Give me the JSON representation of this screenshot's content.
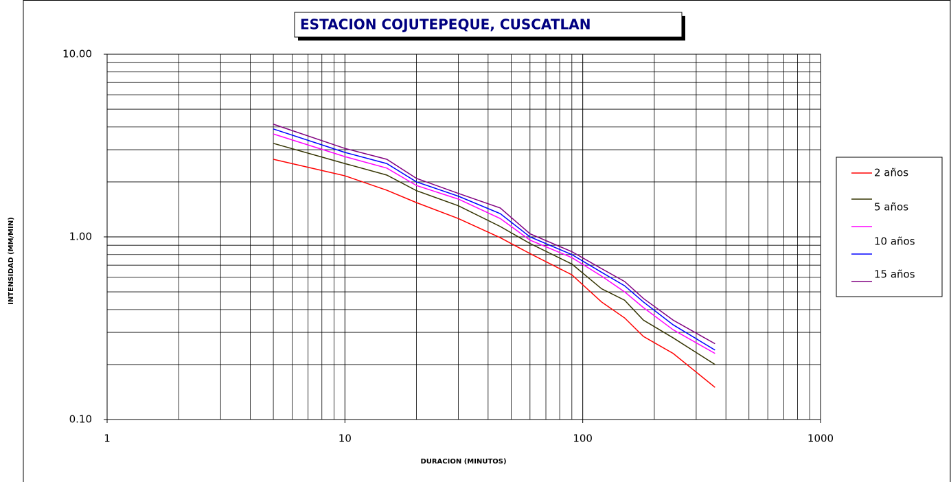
{
  "chart_data": {
    "type": "line",
    "title": "ESTACION COJUTEPEQUE, CUSCATLAN",
    "x_label": "DURACION (MINUTOS)",
    "y_label": "INTENSIDAD (MM/MIN)",
    "x": [
      5,
      10,
      15,
      20,
      30,
      45,
      60,
      90,
      120,
      150,
      180,
      240,
      360
    ],
    "series": [
      {
        "name": "2 años",
        "color": "#ff0000",
        "values": [
          2.66,
          2.16,
          1.8,
          1.54,
          1.26,
          0.99,
          0.81,
          0.62,
          0.44,
          0.36,
          0.285,
          0.23,
          0.15
        ]
      },
      {
        "name": "5 años",
        "color": "#333300",
        "values": [
          3.25,
          2.52,
          2.18,
          1.79,
          1.48,
          1.14,
          0.92,
          0.71,
          0.52,
          0.45,
          0.35,
          0.28,
          0.2
        ]
      },
      {
        "name": null,
        "color": "#ff00ff",
        "values": [
          3.66,
          2.75,
          2.38,
          1.91,
          1.61,
          1.26,
          0.96,
          0.77,
          0.61,
          0.5,
          0.41,
          0.31,
          0.23
        ]
      },
      {
        "name": "10 años",
        "color": "#0000ff",
        "values": [
          3.9,
          2.9,
          2.52,
          2.0,
          1.67,
          1.34,
          1.0,
          0.8,
          0.64,
          0.54,
          0.44,
          0.33,
          0.24
        ]
      },
      {
        "name": "15 años",
        "color": "#800080",
        "values": [
          4.14,
          3.05,
          2.66,
          2.09,
          1.73,
          1.44,
          1.04,
          0.83,
          0.67,
          0.57,
          0.46,
          0.35,
          0.26
        ]
      }
    ],
    "log_x": true,
    "log_y": true,
    "grid": true,
    "xlim": [
      1,
      1000
    ],
    "xticks": [
      1,
      10,
      100,
      1000
    ],
    "xminor": [
      2,
      3,
      4,
      5,
      6,
      7,
      8,
      9,
      20,
      30,
      40,
      50,
      60,
      70,
      80,
      90,
      200,
      300,
      400,
      500,
      600,
      700,
      800,
      900
    ],
    "ylim": [
      0.1,
      10
    ],
    "yticks": [
      {
        "value": 0.1,
        "label": "0.10"
      },
      {
        "value": 1,
        "label": "1.00"
      },
      {
        "value": 10,
        "label": "10.00"
      }
    ],
    "yminor": [
      0.2,
      0.3,
      0.4,
      0.5,
      0.6,
      0.7,
      0.8,
      0.9,
      2,
      3,
      4,
      5,
      6,
      7,
      8,
      9
    ],
    "legend": "right"
  }
}
